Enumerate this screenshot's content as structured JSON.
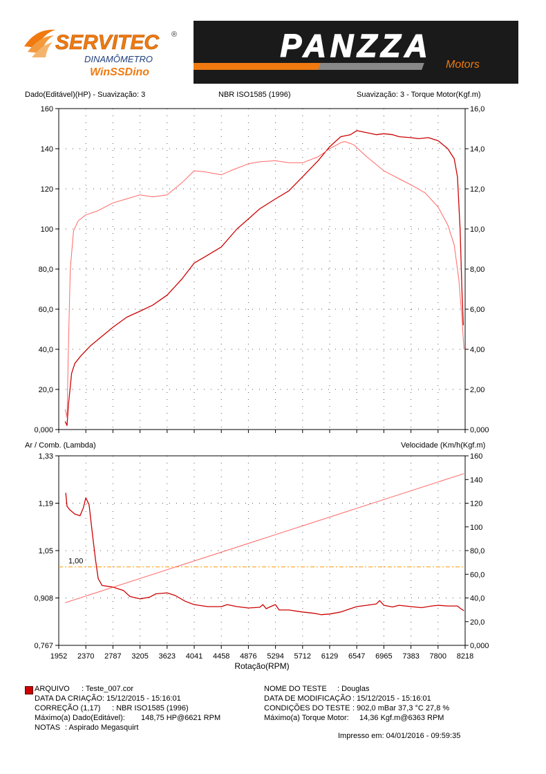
{
  "logo_left": {
    "brand": "SERVITEC",
    "registered": "®",
    "line1": "DINAMÔMETRO",
    "line2": "WinSSDino"
  },
  "logo_right": {
    "brand": "PANZZA",
    "sub": "Motors"
  },
  "top_chart_header": {
    "left": "Dado(Editável)(HP) - Suavização: 3",
    "center": "NBR ISO1585 (1996)",
    "right": "Suavização: 3 - Torque Motor(Kgf.m)"
  },
  "bottom_chart_header": {
    "left": "Ar / Comb. (Lambda)",
    "right": "Velocidade (Km/h(Kgf.m)"
  },
  "chart_data": [
    {
      "type": "line",
      "x_ticks": [
        "1952",
        "2370",
        "2787",
        "3205",
        "3623",
        "4041",
        "4458",
        "4876",
        "5294",
        "5712",
        "6129",
        "6547",
        "6965",
        "7383",
        "7800",
        "8218"
      ],
      "x_range": [
        1952,
        8218
      ],
      "y_left_ticks": [
        "0,000",
        "20,0",
        "40,0",
        "60,0",
        "80,0",
        "100",
        "120",
        "140",
        "160"
      ],
      "y_left_range": [
        0,
        160
      ],
      "y_right_ticks": [
        "0,000",
        "2,00",
        "4,00",
        "6,00",
        "8,00",
        "10,0",
        "12,0",
        "14,0",
        "16,0"
      ],
      "y_right_range": [
        0,
        16
      ],
      "grid": "dotted",
      "series": [
        {
          "name": "Dado(Editável)(HP)",
          "axis": "left",
          "color": "#cc0000",
          "points": [
            [
              2050,
              4
            ],
            [
              2080,
              2
            ],
            [
              2100,
              12
            ],
            [
              2150,
              28
            ],
            [
              2200,
              33
            ],
            [
              2300,
              37
            ],
            [
              2450,
              42
            ],
            [
              2600,
              46
            ],
            [
              2787,
              51
            ],
            [
              3000,
              56
            ],
            [
              3205,
              59
            ],
            [
              3400,
              62
            ],
            [
              3623,
              67
            ],
            [
              3850,
              75
            ],
            [
              4041,
              83
            ],
            [
              4200,
              86
            ],
            [
              4458,
              91
            ],
            [
              4700,
              100
            ],
            [
              4876,
              105
            ],
            [
              5050,
              110
            ],
            [
              5294,
              115
            ],
            [
              5500,
              119
            ],
            [
              5712,
              126
            ],
            [
              5950,
              134
            ],
            [
              6129,
              141
            ],
            [
              6300,
              146
            ],
            [
              6450,
              147
            ],
            [
              6547,
              149
            ],
            [
              6700,
              148
            ],
            [
              6850,
              147
            ],
            [
              6965,
              147.5
            ],
            [
              7100,
              147
            ],
            [
              7200,
              146
            ],
            [
              7383,
              145.5
            ],
            [
              7500,
              145
            ],
            [
              7650,
              145.5
            ],
            [
              7800,
              144
            ],
            [
              7950,
              140
            ],
            [
              8050,
              135
            ],
            [
              8100,
              126
            ],
            [
              8140,
              100
            ],
            [
              8170,
              68
            ],
            [
              8190,
              52
            ]
          ]
        },
        {
          "name": "Torque Motor(Kgf.m)",
          "axis": "right",
          "color": "#ff6666",
          "points": [
            [
              2050,
              1.0
            ],
            [
              2080,
              0.6
            ],
            [
              2100,
              4.0
            ],
            [
              2130,
              8.0
            ],
            [
              2180,
              9.9
            ],
            [
              2250,
              10.4
            ],
            [
              2370,
              10.7
            ],
            [
              2550,
              10.9
            ],
            [
              2787,
              11.3
            ],
            [
              3000,
              11.5
            ],
            [
              3205,
              11.7
            ],
            [
              3400,
              11.6
            ],
            [
              3623,
              11.7
            ],
            [
              3850,
              12.3
            ],
            [
              4041,
              12.9
            ],
            [
              4200,
              12.85
            ],
            [
              4458,
              12.7
            ],
            [
              4600,
              12.9
            ],
            [
              4876,
              13.25
            ],
            [
              5050,
              13.35
            ],
            [
              5294,
              13.4
            ],
            [
              5500,
              13.3
            ],
            [
              5712,
              13.3
            ],
            [
              5950,
              13.6
            ],
            [
              6129,
              14.0
            ],
            [
              6300,
              14.3
            ],
            [
              6363,
              14.36
            ],
            [
              6500,
              14.2
            ],
            [
              6700,
              13.6
            ],
            [
              6965,
              12.9
            ],
            [
              7200,
              12.5
            ],
            [
              7383,
              12.2
            ],
            [
              7600,
              11.8
            ],
            [
              7800,
              11.1
            ],
            [
              7950,
              10.2
            ],
            [
              8050,
              9.2
            ],
            [
              8120,
              7.5
            ],
            [
              8170,
              5.5
            ],
            [
              8200,
              4.0
            ]
          ]
        }
      ]
    },
    {
      "type": "line",
      "x_ticks": [
        "1952",
        "2370",
        "2787",
        "3205",
        "3623",
        "4041",
        "4458",
        "4876",
        "5294",
        "5712",
        "6129",
        "6547",
        "6965",
        "7383",
        "7800",
        "8218"
      ],
      "x_range": [
        1952,
        8218
      ],
      "xlabel": "Rotação(RPM)",
      "y_left_ticks": [
        "0,767",
        "0,908",
        "1,05",
        "1,19",
        "1,33"
      ],
      "y_left_range": [
        0.767,
        1.33
      ],
      "y_right_ticks": [
        "0,000",
        "20,0",
        "40,0",
        "60,0",
        "80,0",
        "100",
        "120",
        "140",
        "160"
      ],
      "y_right_range": [
        0,
        160
      ],
      "grid": "dotted",
      "reference_line": {
        "value": 1.0,
        "label": "1,00",
        "color": "#ff9900"
      },
      "series": [
        {
          "name": "Ar / Comb. (Lambda)",
          "axis": "left",
          "color": "#cc0000",
          "points": [
            [
              2060,
              1.22
            ],
            [
              2080,
              1.18
            ],
            [
              2120,
              1.17
            ],
            [
              2200,
              1.157
            ],
            [
              2280,
              1.152
            ],
            [
              2330,
              1.175
            ],
            [
              2370,
              1.205
            ],
            [
              2420,
              1.185
            ],
            [
              2470,
              1.1
            ],
            [
              2520,
              1.02
            ],
            [
              2560,
              0.965
            ],
            [
              2620,
              0.945
            ],
            [
              2787,
              0.94
            ],
            [
              2950,
              0.93
            ],
            [
              3050,
              0.912
            ],
            [
              3205,
              0.905
            ],
            [
              3350,
              0.91
            ],
            [
              3450,
              0.92
            ],
            [
              3623,
              0.923
            ],
            [
              3750,
              0.915
            ],
            [
              3900,
              0.898
            ],
            [
              4041,
              0.888
            ],
            [
              4250,
              0.882
            ],
            [
              4458,
              0.882
            ],
            [
              4550,
              0.888
            ],
            [
              4700,
              0.882
            ],
            [
              4876,
              0.878
            ],
            [
              5050,
              0.88
            ],
            [
              5100,
              0.888
            ],
            [
              5150,
              0.876
            ],
            [
              5250,
              0.885
            ],
            [
              5294,
              0.888
            ],
            [
              5350,
              0.872
            ],
            [
              5500,
              0.872
            ],
            [
              5712,
              0.866
            ],
            [
              5900,
              0.862
            ],
            [
              6000,
              0.858
            ],
            [
              6129,
              0.86
            ],
            [
              6300,
              0.866
            ],
            [
              6450,
              0.876
            ],
            [
              6547,
              0.882
            ],
            [
              6700,
              0.886
            ],
            [
              6850,
              0.89
            ],
            [
              6900,
              0.9
            ],
            [
              6965,
              0.886
            ],
            [
              7100,
              0.881
            ],
            [
              7200,
              0.886
            ],
            [
              7383,
              0.882
            ],
            [
              7550,
              0.879
            ],
            [
              7700,
              0.884
            ],
            [
              7800,
              0.886
            ],
            [
              7950,
              0.884
            ],
            [
              8100,
              0.884
            ],
            [
              8150,
              0.876
            ],
            [
              8200,
              0.87
            ]
          ]
        },
        {
          "name": "Velocidade (Km/h)",
          "axis": "right",
          "color": "#ff6666",
          "points": [
            [
              2050,
              36
            ],
            [
              8200,
              145
            ]
          ]
        }
      ]
    }
  ],
  "info_left": {
    "arquivo_label": "ARQUIVO",
    "arquivo_value": ": Teste_007.cor",
    "criacao_label": "DATA DA CRIAÇÃO",
    "criacao_value": ": 15/12/2015 - 15:16:01",
    "correcao_label": "CORREÇÃO (1,17)",
    "correcao_value": ": NBR ISO1585 (1996)",
    "maximo_label": "Máximo(a) Dado(Editável):",
    "maximo_value": "148,75 HP@6621 RPM",
    "notas_label": "NOTAS",
    "notas_value": ": Aspirado Megasquirt"
  },
  "info_right": {
    "nome_label": "NOME DO TESTE",
    "nome_value": ": Douglas",
    "modificacao_label": "DATA DE MODIFICAÇÃO",
    "modificacao_value": ":   15/12/2015 - 15:16:01",
    "condicoes_label": "CONDIÇÕES DO TESTE",
    "condicoes_value": ":   902,0  mBar  37,3  °C   27,8 %",
    "torque_label": "Máximo(a) Torque Motor:",
    "torque_value": "14,36 Kgf.m@6363 RPM"
  },
  "impresso": "Impresso em: 04/01/2016 - 09:59:35",
  "colors": {
    "accent_orange": "#f07a10",
    "dark_red": "#cc0000",
    "light_red": "#ff6666"
  }
}
